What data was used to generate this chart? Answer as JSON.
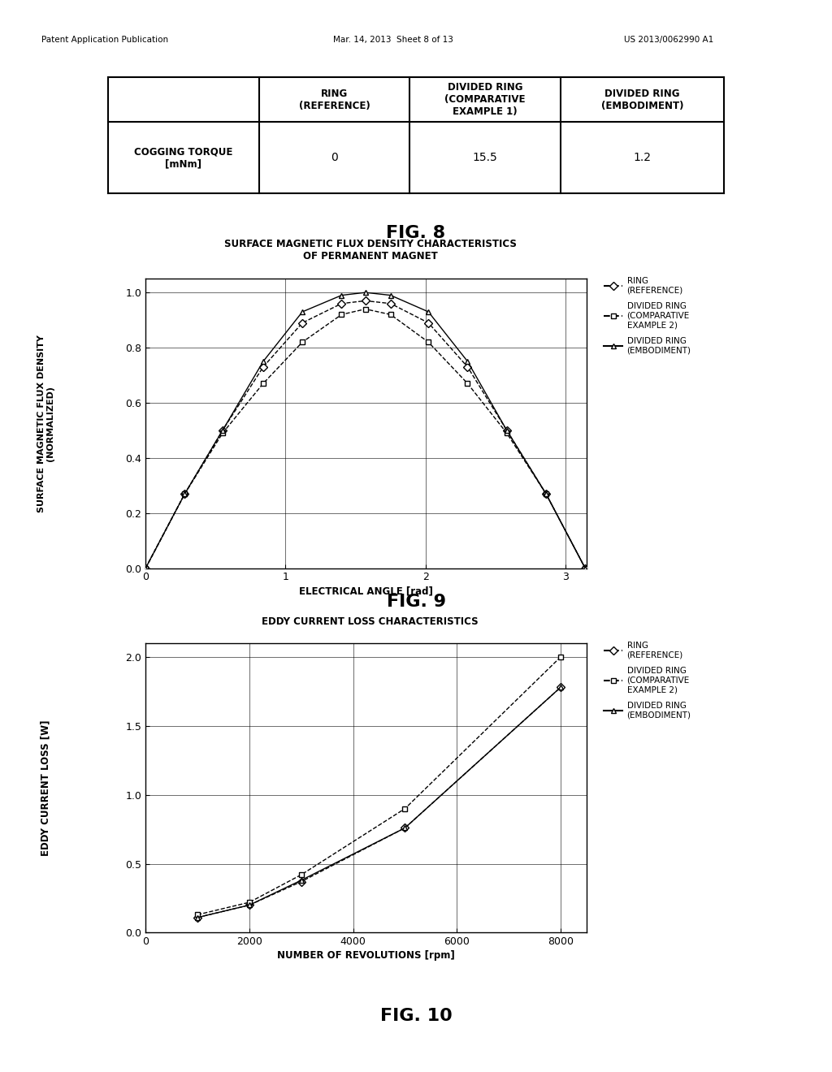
{
  "header_left": "Patent Application Publication",
  "header_mid": "Mar. 14, 2013  Sheet 8 of 13",
  "header_right": "US 2013/0062990 A1",
  "table": {
    "col_headers": [
      "",
      "RING\n(REFERENCE)",
      "DIVIDED RING\n(COMPARATIVE\nEXAMPLE 1)",
      "DIVIDED RING\n(EMBODIMENT)"
    ],
    "row_label": "COGGING TORQUE\n[mNm]",
    "values": [
      "0",
      "15.5",
      "1.2"
    ],
    "fig_label": "FIG. 8"
  },
  "fig9": {
    "title_line1": "SURFACE MAGNETIC FLUX DENSITY CHARACTERISTICS",
    "title_line2": "OF PERMANENT MAGNET",
    "xlabel": "ELECTRICAL ANGLE [rad]",
    "ylabel_line1": "SURFACE MAGNETIC FLUX DENSITY",
    "ylabel_line2": "(NORMALIZED)",
    "xlim": [
      0,
      3.15
    ],
    "ylim": [
      0,
      1.05
    ],
    "xticks": [
      0,
      1,
      2,
      3
    ],
    "yticks": [
      0,
      0.2,
      0.4,
      0.6,
      0.8,
      1
    ],
    "fig_label": "FIG. 9",
    "ring_x": [
      0.0,
      0.28,
      0.55,
      0.84,
      1.12,
      1.4,
      1.57,
      1.75,
      2.02,
      2.3,
      2.58,
      2.86,
      3.14
    ],
    "ring_y": [
      0.0,
      0.27,
      0.5,
      0.73,
      0.89,
      0.96,
      0.97,
      0.96,
      0.89,
      0.73,
      0.5,
      0.27,
      0.0
    ],
    "comp2_x": [
      0.0,
      0.28,
      0.55,
      0.84,
      1.12,
      1.4,
      1.57,
      1.75,
      2.02,
      2.3,
      2.58,
      2.86,
      3.14
    ],
    "comp2_y": [
      0.0,
      0.27,
      0.49,
      0.67,
      0.82,
      0.92,
      0.94,
      0.92,
      0.82,
      0.67,
      0.49,
      0.27,
      0.0
    ],
    "emb_x": [
      0.0,
      0.28,
      0.55,
      0.84,
      1.12,
      1.4,
      1.57,
      1.75,
      2.02,
      2.3,
      2.58,
      2.86,
      3.14
    ],
    "emb_y": [
      0.0,
      0.27,
      0.5,
      0.75,
      0.93,
      0.99,
      1.0,
      0.99,
      0.93,
      0.75,
      0.5,
      0.27,
      0.0
    ]
  },
  "fig10": {
    "title": "EDDY CURRENT LOSS CHARACTERISTICS",
    "xlabel": "NUMBER OF REVOLUTIONS [rpm]",
    "ylabel": "EDDY CURRENT LOSS [W]",
    "xlim": [
      0,
      8500
    ],
    "ylim": [
      0,
      2.1
    ],
    "xticks": [
      0,
      2000,
      4000,
      6000,
      8000
    ],
    "yticks": [
      0,
      0.5,
      1,
      1.5,
      2
    ],
    "fig_label": "FIG. 10",
    "ring_x": [
      1000,
      2000,
      3000,
      5000,
      8000
    ],
    "ring_y": [
      0.11,
      0.2,
      0.37,
      0.76,
      1.78
    ],
    "comp2_x": [
      1000,
      2000,
      3000,
      5000,
      8000
    ],
    "comp2_y": [
      0.13,
      0.22,
      0.42,
      0.9,
      2.0
    ],
    "emb_x": [
      1000,
      2000,
      3000,
      5000,
      8000
    ],
    "emb_y": [
      0.11,
      0.2,
      0.38,
      0.76,
      1.78
    ]
  },
  "legend_labels": [
    "RING\n(REFERENCE)",
    "DIVIDED RING\n(COMPARATIVE\nEXAMPLE 2)",
    "DIVIDED RING\n(EMBODIMENT)"
  ],
  "bg_color": "#ffffff",
  "marker_size": 5,
  "linewidth": 1.0
}
